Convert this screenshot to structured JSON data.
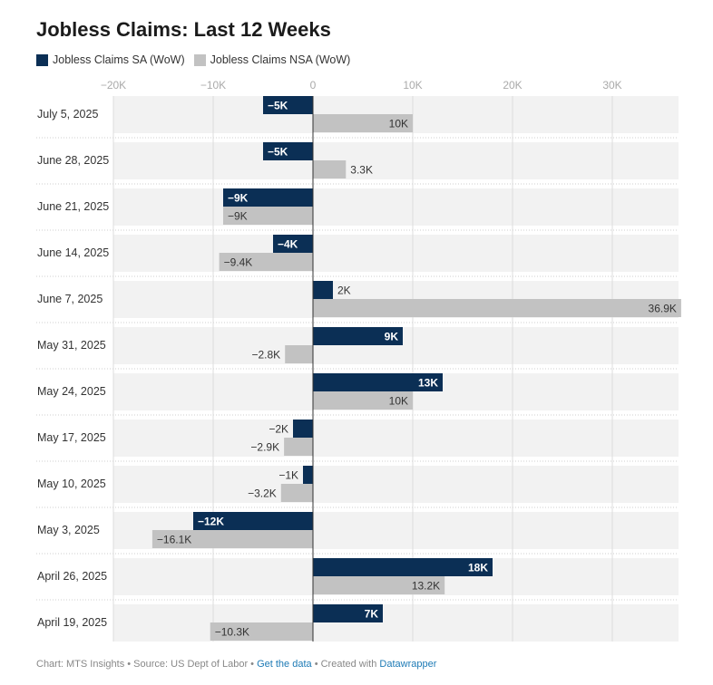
{
  "title": "Jobless Claims: Last 12 Weeks",
  "legend": [
    {
      "label": "Jobless Claims SA (WoW)",
      "color": "#0b2f55"
    },
    {
      "label": "Jobless Claims NSA (WoW)",
      "color": "#c2c2c2"
    }
  ],
  "footer": {
    "prefix": "Chart: MTS Insights • Source: US Dept of Labor • ",
    "link1": "Get the data",
    "mid": " • Created with ",
    "link2": "Datawrapper"
  },
  "chart_data": {
    "type": "bar",
    "orientation": "horizontal",
    "categories": [
      "July 5, 2025",
      "June 28, 2025",
      "June 21, 2025",
      "June 14, 2025",
      "June 7, 2025",
      "May 31, 2025",
      "May 24, 2025",
      "May 17, 2025",
      "May 10, 2025",
      "May 3, 2025",
      "April 26, 2025",
      "April 19, 2025"
    ],
    "series": [
      {
        "name": "Jobless Claims SA (WoW)",
        "color": "#0b2f55",
        "values": [
          -5000,
          -5000,
          -9000,
          -4000,
          2000,
          9000,
          13000,
          -2000,
          -1000,
          -12000,
          18000,
          7000
        ],
        "labels": [
          "−5K",
          "−5K",
          "−9K",
          "−4K",
          "2K",
          "9K",
          "13K",
          "−2K",
          "−1K",
          "−12K",
          "18K",
          "7K"
        ]
      },
      {
        "name": "Jobless Claims NSA (WoW)",
        "color": "#c2c2c2",
        "values": [
          10000,
          3300,
          -9000,
          -9400,
          36900,
          -2800,
          10000,
          -2900,
          -3200,
          -16100,
          13200,
          -10300
        ],
        "labels": [
          "10K",
          "3.3K",
          "−9K",
          "−9.4K",
          "36.9K",
          "−2.8K",
          "10K",
          "−2.9K",
          "−3.2K",
          "−16.1K",
          "13.2K",
          "−10.3K"
        ]
      }
    ],
    "xlim": [
      -20000,
      37000
    ],
    "xticks": [
      -20000,
      -10000,
      0,
      10000,
      20000,
      30000
    ],
    "xtick_labels": [
      "−20K",
      "−10K",
      "0",
      "10K",
      "20K",
      "30K"
    ],
    "grid": true
  }
}
